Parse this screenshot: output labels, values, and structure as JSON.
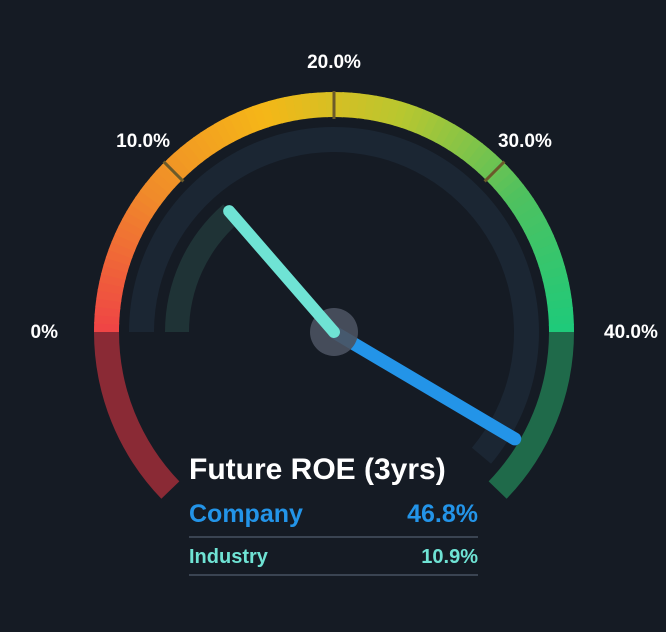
{
  "chart_data": {
    "type": "gauge",
    "title": "Future ROE (3yrs)",
    "scale": {
      "min": 0,
      "max": 40,
      "unit": "%"
    },
    "ticks": [
      {
        "value": 0,
        "label": "0%"
      },
      {
        "value": 10,
        "label": "10.0%"
      },
      {
        "value": 20,
        "label": "20.0%"
      },
      {
        "value": 30,
        "label": "30.0%"
      },
      {
        "value": 40,
        "label": "40.0%"
      }
    ],
    "series": [
      {
        "name": "Company",
        "value": 46.8,
        "display": "46.8%",
        "color": "#2394e8"
      },
      {
        "name": "Industry",
        "value": 10.9,
        "display": "10.9%",
        "color": "#6fe3d4"
      }
    ],
    "colors": {
      "background": "#151b24",
      "track": "#1b2633",
      "gradient": [
        "#ef4545",
        "#f08a2a",
        "#f5b717",
        "#b7c730",
        "#4fc15f",
        "#1fca7a"
      ],
      "below_min": "#8a2a35",
      "above_max": "#1f6a4a",
      "hub": "#4a5260"
    }
  }
}
